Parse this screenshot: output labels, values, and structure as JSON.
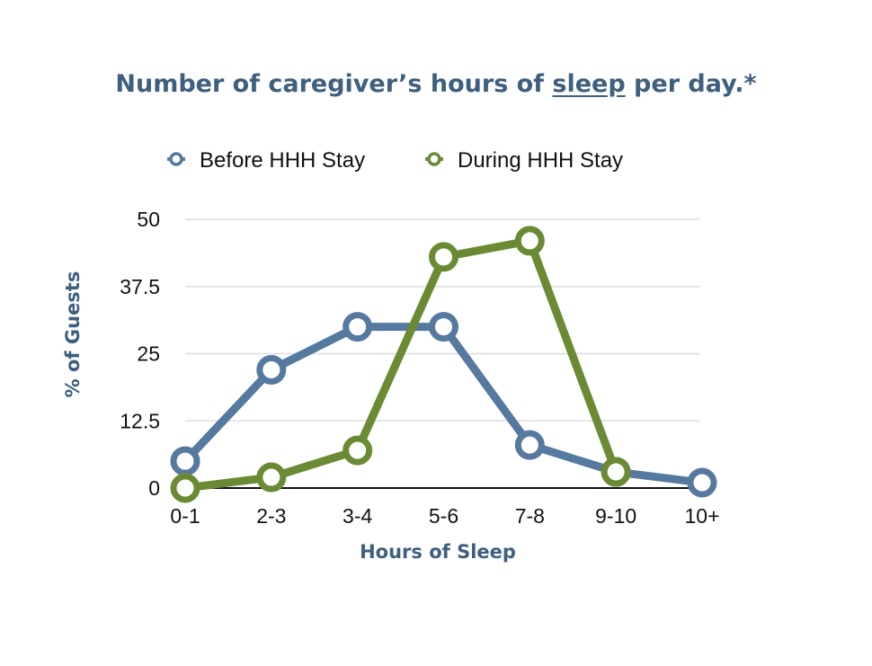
{
  "title": {
    "before": "Number of caregiver’s hours of ",
    "underlined": "sleep",
    "after": " per day.*"
  },
  "chart_data": {
    "type": "line",
    "categories": [
      "0-1",
      "2-3",
      "3-4",
      "5-6",
      "7-8",
      "9-10",
      "10+"
    ],
    "series": [
      {
        "name": "Before HHH Stay",
        "color": "#55799f",
        "values": [
          5,
          22,
          30,
          30,
          8,
          3,
          1
        ]
      },
      {
        "name": "During HHH Stay",
        "color": "#6a8a34",
        "values": [
          0,
          2,
          7,
          43,
          46,
          3,
          null
        ]
      }
    ],
    "xlabel": "Hours of Sleep",
    "ylabel": "% of Guests",
    "ylim": [
      0,
      50
    ],
    "yticks": [
      "0",
      "12.5",
      "25",
      "37.5",
      "50"
    ],
    "ytick_values": [
      0,
      12.5,
      25,
      37.5,
      50
    ],
    "grid": true,
    "legend_position": "top"
  }
}
